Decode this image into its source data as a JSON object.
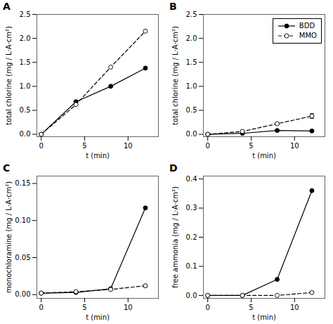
{
  "chart_data": [
    {
      "type": "line",
      "title": "A",
      "xlabel": "t (min)",
      "ylabel": "total chlorine (mg / L·A·cm²)",
      "x": [
        0,
        4,
        8,
        12
      ],
      "xlim": [
        -0.5,
        13.5
      ],
      "xticks": [
        0,
        5,
        10
      ],
      "ylim": [
        -0.05,
        2.5
      ],
      "yticks": [
        {
          "value": 0.0,
          "label": "0.0"
        },
        0.5,
        {
          "value": 1.0,
          "label": "1.0"
        },
        1.5,
        {
          "value": 2.0,
          "label": "2.0"
        },
        2.5
      ],
      "grid": false,
      "series": [
        {
          "name": "BDD",
          "color": "#000000",
          "line_style": "solid",
          "marker": "filled circle",
          "values": [
            0.0,
            0.68,
            1.0,
            1.38
          ],
          "yerr": [
            0.0,
            0.0,
            0.0,
            0.0
          ]
        },
        {
          "name": "MMO",
          "color": "#000000",
          "line_style": "dashed",
          "marker": "open circle",
          "values": [
            0.0,
            0.62,
            1.4,
            2.15
          ],
          "yerr": [
            0.0,
            0.0,
            0.0,
            0.0
          ]
        }
      ]
    },
    {
      "type": "line",
      "title": "B",
      "xlabel": "t (min)",
      "ylabel": "total chlorine (mg / L·A·cm²)",
      "x": [
        0,
        4,
        8,
        12
      ],
      "xlim": [
        -0.5,
        13.5
      ],
      "xticks": [
        0,
        5,
        10
      ],
      "ylim": [
        -0.05,
        2.5
      ],
      "yticks": [
        {
          "value": 0.0,
          "label": "0.0"
        },
        0.5,
        {
          "value": 1.0,
          "label": "1.0"
        },
        1.5,
        {
          "value": 2.0,
          "label": "2.0"
        },
        2.5
      ],
      "grid": false,
      "legend": "upper right",
      "series": [
        {
          "name": "BDD",
          "color": "#000000",
          "line_style": "solid",
          "marker": "filled circle",
          "values": [
            0.0,
            0.02,
            0.08,
            0.07
          ],
          "yerr": [
            0.0,
            0.0,
            0.015,
            0.02
          ]
        },
        {
          "name": "MMO",
          "color": "#000000",
          "line_style": "dashed",
          "marker": "open circle",
          "values": [
            0.0,
            0.06,
            0.22,
            0.38
          ],
          "yerr": [
            0.0,
            0.0,
            0.02,
            0.05
          ]
        }
      ]
    },
    {
      "type": "line",
      "title": "C",
      "xlabel": "t (min)",
      "ylabel": "monochloramine (mg / L·A·cm²)",
      "x": [
        0,
        4,
        8,
        12
      ],
      "xlim": [
        -0.5,
        13.5
      ],
      "xticks": [
        0,
        5,
        10
      ],
      "ylim": [
        -0.005,
        0.16
      ],
      "yticks": [
        {
          "value": 0.0,
          "label": "0.00"
        },
        0.05,
        {
          "value": 0.1,
          "label": "0.10"
        },
        0.15
      ],
      "grid": false,
      "series": [
        {
          "name": "BDD",
          "color": "#000000",
          "line_style": "solid",
          "marker": "filled circle",
          "values": [
            0.002,
            0.003,
            0.008,
            0.117
          ],
          "yerr": [
            0.0,
            0.0,
            0.0,
            0.0
          ]
        },
        {
          "name": "MMO",
          "color": "#000000",
          "line_style": "dashed",
          "marker": "open circle",
          "values": [
            0.002,
            0.004,
            0.007,
            0.012
          ],
          "yerr": [
            0.0,
            0.0,
            0.001,
            0.002
          ]
        }
      ]
    },
    {
      "type": "line",
      "title": "D",
      "xlabel": "t (min)",
      "ylabel": "free ammonia (mg / L·A·cm²)",
      "x": [
        0,
        4,
        8,
        12
      ],
      "xlim": [
        -0.5,
        13.5
      ],
      "xticks": [
        0,
        5,
        10
      ],
      "ylim": [
        -0.01,
        0.41
      ],
      "yticks": [
        {
          "value": 0.0,
          "label": "0.0"
        },
        0.1,
        0.2,
        0.3,
        0.4
      ],
      "grid": false,
      "series": [
        {
          "name": "BDD",
          "color": "#000000",
          "line_style": "solid",
          "marker": "filled circle",
          "values": [
            0.0,
            0.0,
            0.055,
            0.36
          ],
          "yerr": [
            0.0,
            0.0,
            0.0,
            0.0
          ]
        },
        {
          "name": "MMO",
          "color": "#000000",
          "line_style": "dashed",
          "marker": "open circle",
          "values": [
            0.0,
            0.0,
            0.0,
            0.01
          ],
          "yerr": [
            0.0,
            0.0,
            0.0,
            0.003
          ]
        }
      ]
    }
  ]
}
